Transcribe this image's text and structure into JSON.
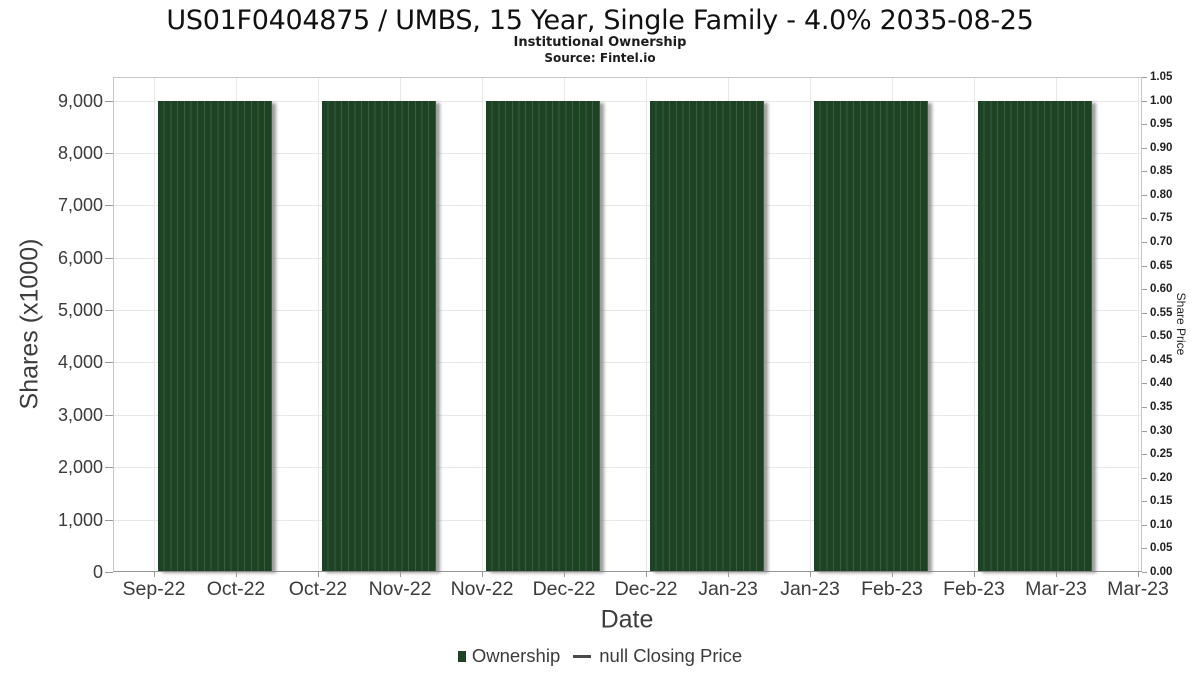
{
  "title": "US01F0404875 / UMBS, 15 Year, Single Family - 4.0% 2035-08-25",
  "subtitle": "Institutional Ownership",
  "source": "Source: Fintel.io",
  "chart_data": {
    "type": "bar",
    "title": "US01F0404875 / UMBS, 15 Year, Single Family - 4.0% 2035-08-25",
    "subtitle": "Institutional Ownership",
    "source": "Source: Fintel.io",
    "xlabel": "Date",
    "ylabel_left": "Shares (x1000)",
    "ylabel_right": "Share Price",
    "grid": true,
    "legend_position": "bottom",
    "x_tick_labels": [
      "Sep-22",
      "Oct-22",
      "Oct-22",
      "Nov-22",
      "Nov-22",
      "Dec-22",
      "Dec-22",
      "Jan-23",
      "Jan-23",
      "Feb-23",
      "Feb-23",
      "Mar-23",
      "Mar-23"
    ],
    "left_axis": {
      "tick_labels": [
        "0",
        "1,000",
        "2,000",
        "3,000",
        "4,000",
        "5,000",
        "6,000",
        "7,000",
        "8,000",
        "9,000"
      ],
      "tick_values": [
        0,
        1000,
        2000,
        3000,
        4000,
        5000,
        6000,
        7000,
        8000,
        9000
      ],
      "ylim": [
        0,
        9450
      ]
    },
    "right_axis": {
      "tick_labels": [
        "0.00",
        "0.05",
        "0.10",
        "0.15",
        "0.20",
        "0.25",
        "0.30",
        "0.35",
        "0.40",
        "0.45",
        "0.50",
        "0.55",
        "0.60",
        "0.65",
        "0.70",
        "0.75",
        "0.80",
        "0.85",
        "0.90",
        "0.95",
        "1.00",
        "1.05"
      ],
      "tick_values": [
        0,
        0.05,
        0.1,
        0.15,
        0.2,
        0.25,
        0.3,
        0.35,
        0.4,
        0.45,
        0.5,
        0.55,
        0.6,
        0.65,
        0.7,
        0.75,
        0.8,
        0.85,
        0.9,
        0.95,
        1.0,
        1.05
      ],
      "ylim": [
        0,
        1.05
      ]
    },
    "series": [
      {
        "name": "Ownership",
        "type": "bar",
        "color": "#1d4224",
        "periods": [
          "Sep-22 to Oct-22",
          "Oct-22 to Nov-22",
          "Nov-22 to Dec-22",
          "Dec-22 to Jan-23",
          "Jan-23 to Feb-23",
          "Feb-23 to Mar-23"
        ],
        "values_x1000": [
          8980,
          8980,
          8980,
          8980,
          8980,
          8980
        ]
      },
      {
        "name": "null Closing Price",
        "type": "line",
        "color": "#4a4a4a",
        "values": []
      }
    ]
  },
  "legend": {
    "items": [
      {
        "label": "Ownership",
        "marker": "square",
        "color": "#1d4224"
      },
      {
        "label": "null Closing Price",
        "marker": "line",
        "color": "#4a4a4a"
      }
    ]
  }
}
